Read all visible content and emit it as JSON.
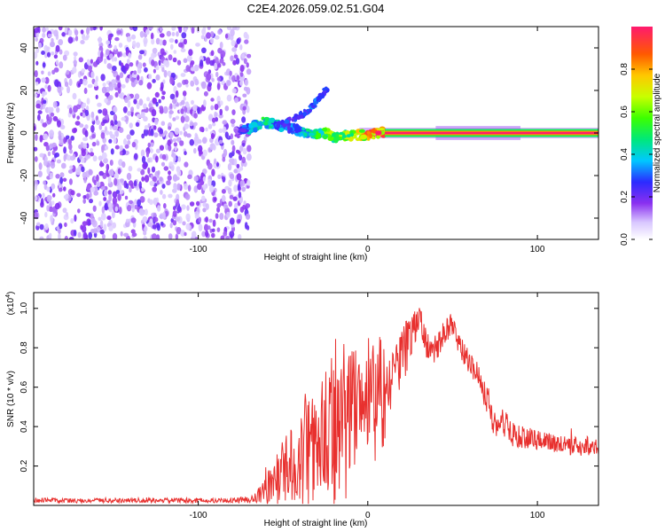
{
  "title": "C2E4.2026.059.02.51.G04",
  "colorbar": {
    "label": "Normalized spectral amplitude",
    "ticks": [
      "0.0",
      "0.2",
      "0.4",
      "0.6",
      "0.8"
    ],
    "tick_values": [
      0.0,
      0.2,
      0.4,
      0.6,
      0.8
    ],
    "range": [
      0,
      1
    ]
  },
  "chart_data": [
    {
      "type": "heatmap",
      "panel": "spectrogram",
      "xlabel": "Height of straight line (km)",
      "ylabel": "Frequency (Hz)",
      "xlim": [
        -197,
        136
      ],
      "ylim": [
        -50,
        50
      ],
      "x_ticks": [
        -100,
        0,
        100
      ],
      "x_tick_labels": [
        "-100",
        "0",
        "100"
      ],
      "y_ticks": [
        -40,
        -20,
        0,
        20,
        40
      ],
      "y_tick_labels": [
        "-40",
        "-20",
        "0",
        "20",
        "40"
      ],
      "noise_region_x": [
        -197,
        -72
      ],
      "main_band": {
        "x_start": 10,
        "x_end": 136,
        "frequency": 0,
        "amplitude": 1.0
      },
      "ridge": {
        "x": [
          -78,
          -70,
          -62,
          -55,
          -48,
          -40,
          -32,
          -25,
          -20,
          -12,
          -5,
          0,
          5,
          10
        ],
        "frequency": [
          0,
          2,
          5,
          4,
          3,
          1,
          0,
          0,
          -2,
          -1,
          -1,
          -1,
          0,
          0
        ],
        "amplitude": [
          0.15,
          0.35,
          0.45,
          0.4,
          0.3,
          0.35,
          0.45,
          0.55,
          0.6,
          0.6,
          0.7,
          0.8,
          0.85,
          0.9
        ]
      },
      "rising_track": {
        "x": [
          -55,
          -45,
          -38,
          -32,
          -28,
          -24
        ],
        "frequency": [
          3,
          6,
          9,
          13,
          17,
          21
        ],
        "amplitude": [
          0.3,
          0.25,
          0.25,
          0.3,
          0.3,
          0.25
        ]
      }
    },
    {
      "type": "line",
      "panel": "snr",
      "xlabel": "Height of straight line (km)",
      "ylabel": "SNR (10 * v/v)",
      "y_multiplier_label": "(x10",
      "y_multiplier_exp": "4",
      "y_multiplier_close": ")",
      "xlim": [
        -197,
        136
      ],
      "ylim": [
        0,
        1.08
      ],
      "x_ticks": [
        -100,
        0,
        100
      ],
      "x_tick_labels": [
        "-100",
        "0",
        "100"
      ],
      "y_ticks": [
        0.2,
        0.4,
        0.6,
        0.8,
        1.0
      ],
      "y_tick_labels": [
        "0.2",
        "0.4",
        "0.6",
        "0.8",
        "1.0"
      ],
      "series": [
        {
          "name": "SNR",
          "color": "#e8302e",
          "x": [
            -197,
            -170,
            -150,
            -120,
            -100,
            -80,
            -68,
            -62,
            -55,
            -48,
            -40,
            -35,
            -30,
            -25,
            -20,
            -15,
            -10,
            -5,
            0,
            5,
            10,
            15,
            20,
            25,
            30,
            35,
            40,
            45,
            50,
            55,
            60,
            65,
            70,
            75,
            80,
            85,
            90,
            100,
            110,
            120,
            130,
            136
          ],
          "y": [
            0.025,
            0.025,
            0.025,
            0.026,
            0.025,
            0.025,
            0.03,
            0.06,
            0.12,
            0.18,
            0.24,
            0.3,
            0.32,
            0.38,
            0.42,
            0.45,
            0.5,
            0.52,
            0.55,
            0.58,
            0.55,
            0.62,
            0.75,
            0.85,
            0.95,
            0.82,
            0.78,
            0.88,
            0.92,
            0.8,
            0.72,
            0.66,
            0.55,
            0.4,
            0.42,
            0.36,
            0.35,
            0.33,
            0.31,
            0.3,
            0.3,
            0.28
          ],
          "noise_amp": [
            0.012,
            0.012,
            0.012,
            0.012,
            0.012,
            0.012,
            0.02,
            0.06,
            0.12,
            0.2,
            0.25,
            0.35,
            0.3,
            0.3,
            0.45,
            0.5,
            0.35,
            0.3,
            0.35,
            0.35,
            0.25,
            0.2,
            0.15,
            0.12,
            0.08,
            0.08,
            0.08,
            0.06,
            0.06,
            0.06,
            0.06,
            0.06,
            0.08,
            0.08,
            0.08,
            0.06,
            0.06,
            0.05,
            0.05,
            0.05,
            0.05,
            0.05
          ]
        }
      ]
    }
  ]
}
